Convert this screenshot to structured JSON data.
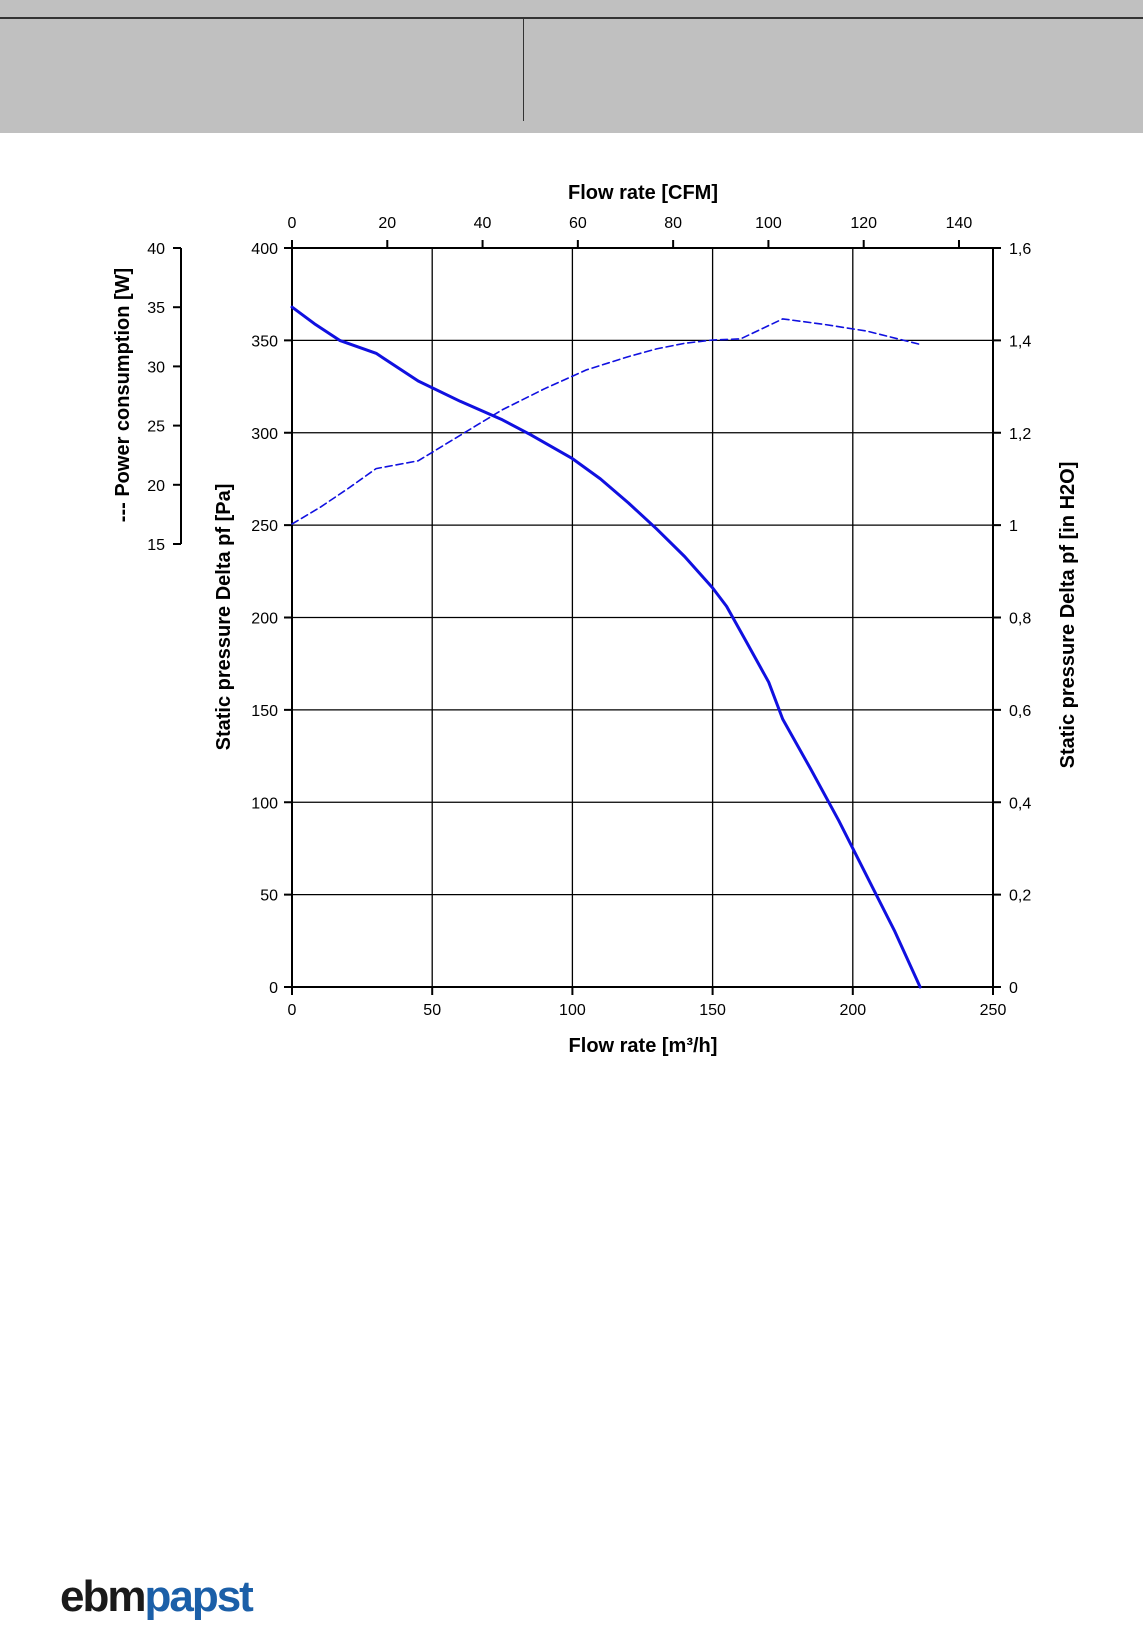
{
  "logo": {
    "part1": "ebm",
    "part2": "papst",
    "color_dark": "#1a1a1a",
    "color_brand": "#1b5fa8"
  },
  "chart_data": {
    "type": "line",
    "title": "",
    "x_bottom": {
      "label": "Flow rate [m³/h]",
      "range": [
        0,
        250
      ],
      "ticks": [
        0,
        50,
        100,
        150,
        200,
        250
      ]
    },
    "x_top": {
      "label": "Flow rate [CFM]",
      "range": [
        0,
        147.14
      ],
      "ticks": [
        0,
        20,
        40,
        60,
        80,
        100,
        120,
        140
      ]
    },
    "y_left_pressure": {
      "label": "Static pressure Delta pf [Pa]",
      "range": [
        0,
        400
      ],
      "ticks": [
        0,
        50,
        100,
        150,
        200,
        250,
        300,
        350,
        400
      ]
    },
    "y_right_pressure": {
      "label": "Static pressure Delta pf [in H2O]",
      "range": [
        0,
        1.6
      ],
      "tick_labels": [
        "0",
        "0,2",
        "0,4",
        "0,6",
        "0,8",
        "1",
        "1,2",
        "1,4",
        "1,6"
      ]
    },
    "y_power": {
      "label": "--- Power consumption [W]",
      "range": [
        15,
        40
      ],
      "ticks": [
        15,
        20,
        25,
        30,
        35,
        40
      ]
    },
    "grid": true,
    "series": [
      {
        "style": "solid",
        "color": "#1010e0",
        "axis": "pressure",
        "x": [
          0,
          8,
          17,
          30,
          45,
          60,
          75,
          85,
          100,
          110,
          120,
          130,
          140,
          150,
          155,
          162,
          170,
          175,
          185,
          195,
          205,
          215,
          224
        ],
        "y": [
          368,
          359,
          350,
          343,
          328,
          317,
          307,
          299,
          286,
          275,
          262,
          248,
          233,
          216,
          206,
          187,
          165,
          145,
          118,
          90,
          60,
          30,
          0
        ]
      },
      {
        "style": "dashed",
        "color": "#1010e0",
        "axis": "power",
        "x": [
          0,
          10,
          20,
          30,
          45,
          60,
          75,
          90,
          105,
          120,
          130,
          140,
          150,
          160,
          175,
          190,
          205,
          224
        ],
        "y": [
          15.1,
          16.6,
          18.3,
          20.1,
          20.8,
          23.1,
          25.4,
          27.3,
          29.0,
          30.2,
          30.9,
          31.4,
          31.7,
          31.8,
          33.6,
          33.1,
          32.5,
          31.3
        ]
      }
    ]
  }
}
